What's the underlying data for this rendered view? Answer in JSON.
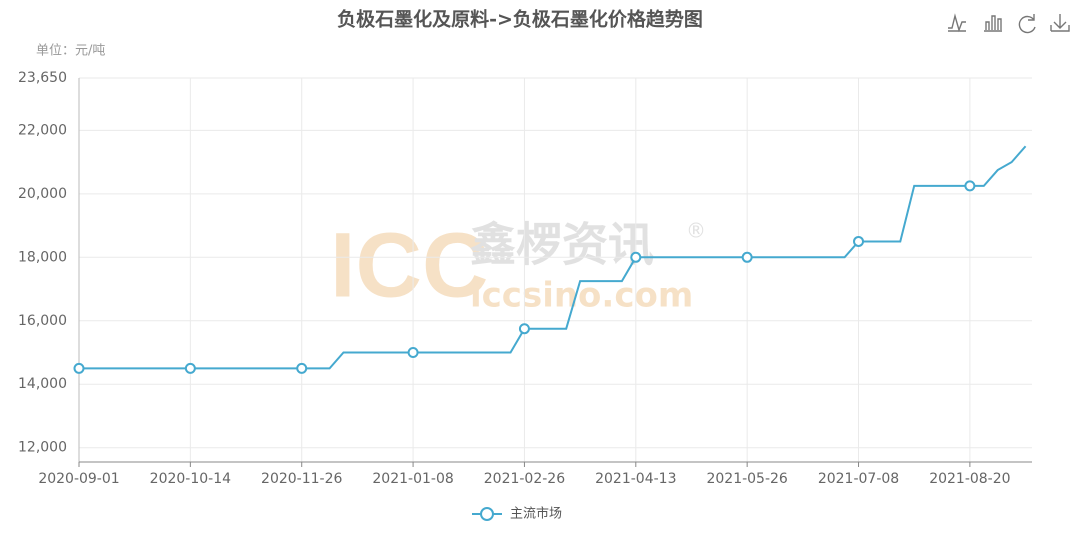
{
  "chart_data": {
    "type": "line",
    "title": "负极石墨化及原料->负极石墨化价格趋势图",
    "y_unit": "单位：元/吨",
    "watermark": {
      "logo": "ICC",
      "name": "鑫椤资讯",
      "mark": "®",
      "site": "iccsino.com"
    },
    "categories": [
      "2020-09-01",
      null,
      null,
      null,
      null,
      null,
      null,
      null,
      "2020-10-14",
      null,
      null,
      null,
      null,
      null,
      null,
      null,
      "2020-11-26",
      null,
      null,
      null,
      null,
      null,
      null,
      null,
      "2021-01-08",
      null,
      null,
      null,
      null,
      null,
      null,
      null,
      "2021-02-26",
      null,
      null,
      null,
      null,
      null,
      null,
      null,
      "2021-04-13",
      null,
      null,
      null,
      null,
      null,
      null,
      null,
      "2021-05-26",
      null,
      null,
      null,
      null,
      null,
      null,
      null,
      "2021-07-08",
      null,
      null,
      null,
      null,
      null,
      null,
      null,
      "2021-08-20",
      null,
      null,
      null,
      null
    ],
    "series": [
      {
        "name": "主流市场",
        "color": "#45a9cf",
        "values": [
          14500,
          14500,
          14500,
          14500,
          14500,
          14500,
          14500,
          14500,
          14500,
          14500,
          14500,
          14500,
          14500,
          14500,
          14500,
          14500,
          14500,
          14500,
          14500,
          15000,
          15000,
          15000,
          15000,
          15000,
          15000,
          15000,
          15000,
          15000,
          15000,
          15000,
          15000,
          15000,
          15750,
          15750,
          15750,
          15750,
          17250,
          17250,
          17250,
          17250,
          18000,
          18000,
          18000,
          18000,
          18000,
          18000,
          18000,
          18000,
          18000,
          18000,
          18000,
          18000,
          18000,
          18000,
          18000,
          18000,
          18500,
          18500,
          18500,
          18500,
          20250,
          20250,
          20250,
          20250,
          20250,
          20250,
          20750,
          21000,
          21500
        ]
      }
    ],
    "ylim": [
      11550,
      23650
    ],
    "yticks": [
      {
        "value": 12000,
        "label": "12,000"
      },
      {
        "value": 14000,
        "label": "14,000"
      },
      {
        "value": 16000,
        "label": "16,000"
      },
      {
        "value": 18000,
        "label": "18,000"
      },
      {
        "value": 20000,
        "label": "20,000"
      },
      {
        "value": 22000,
        "label": "22,000"
      },
      {
        "value": 23650,
        "label": "23,650"
      }
    ],
    "grid": true,
    "legend": "bottom"
  }
}
